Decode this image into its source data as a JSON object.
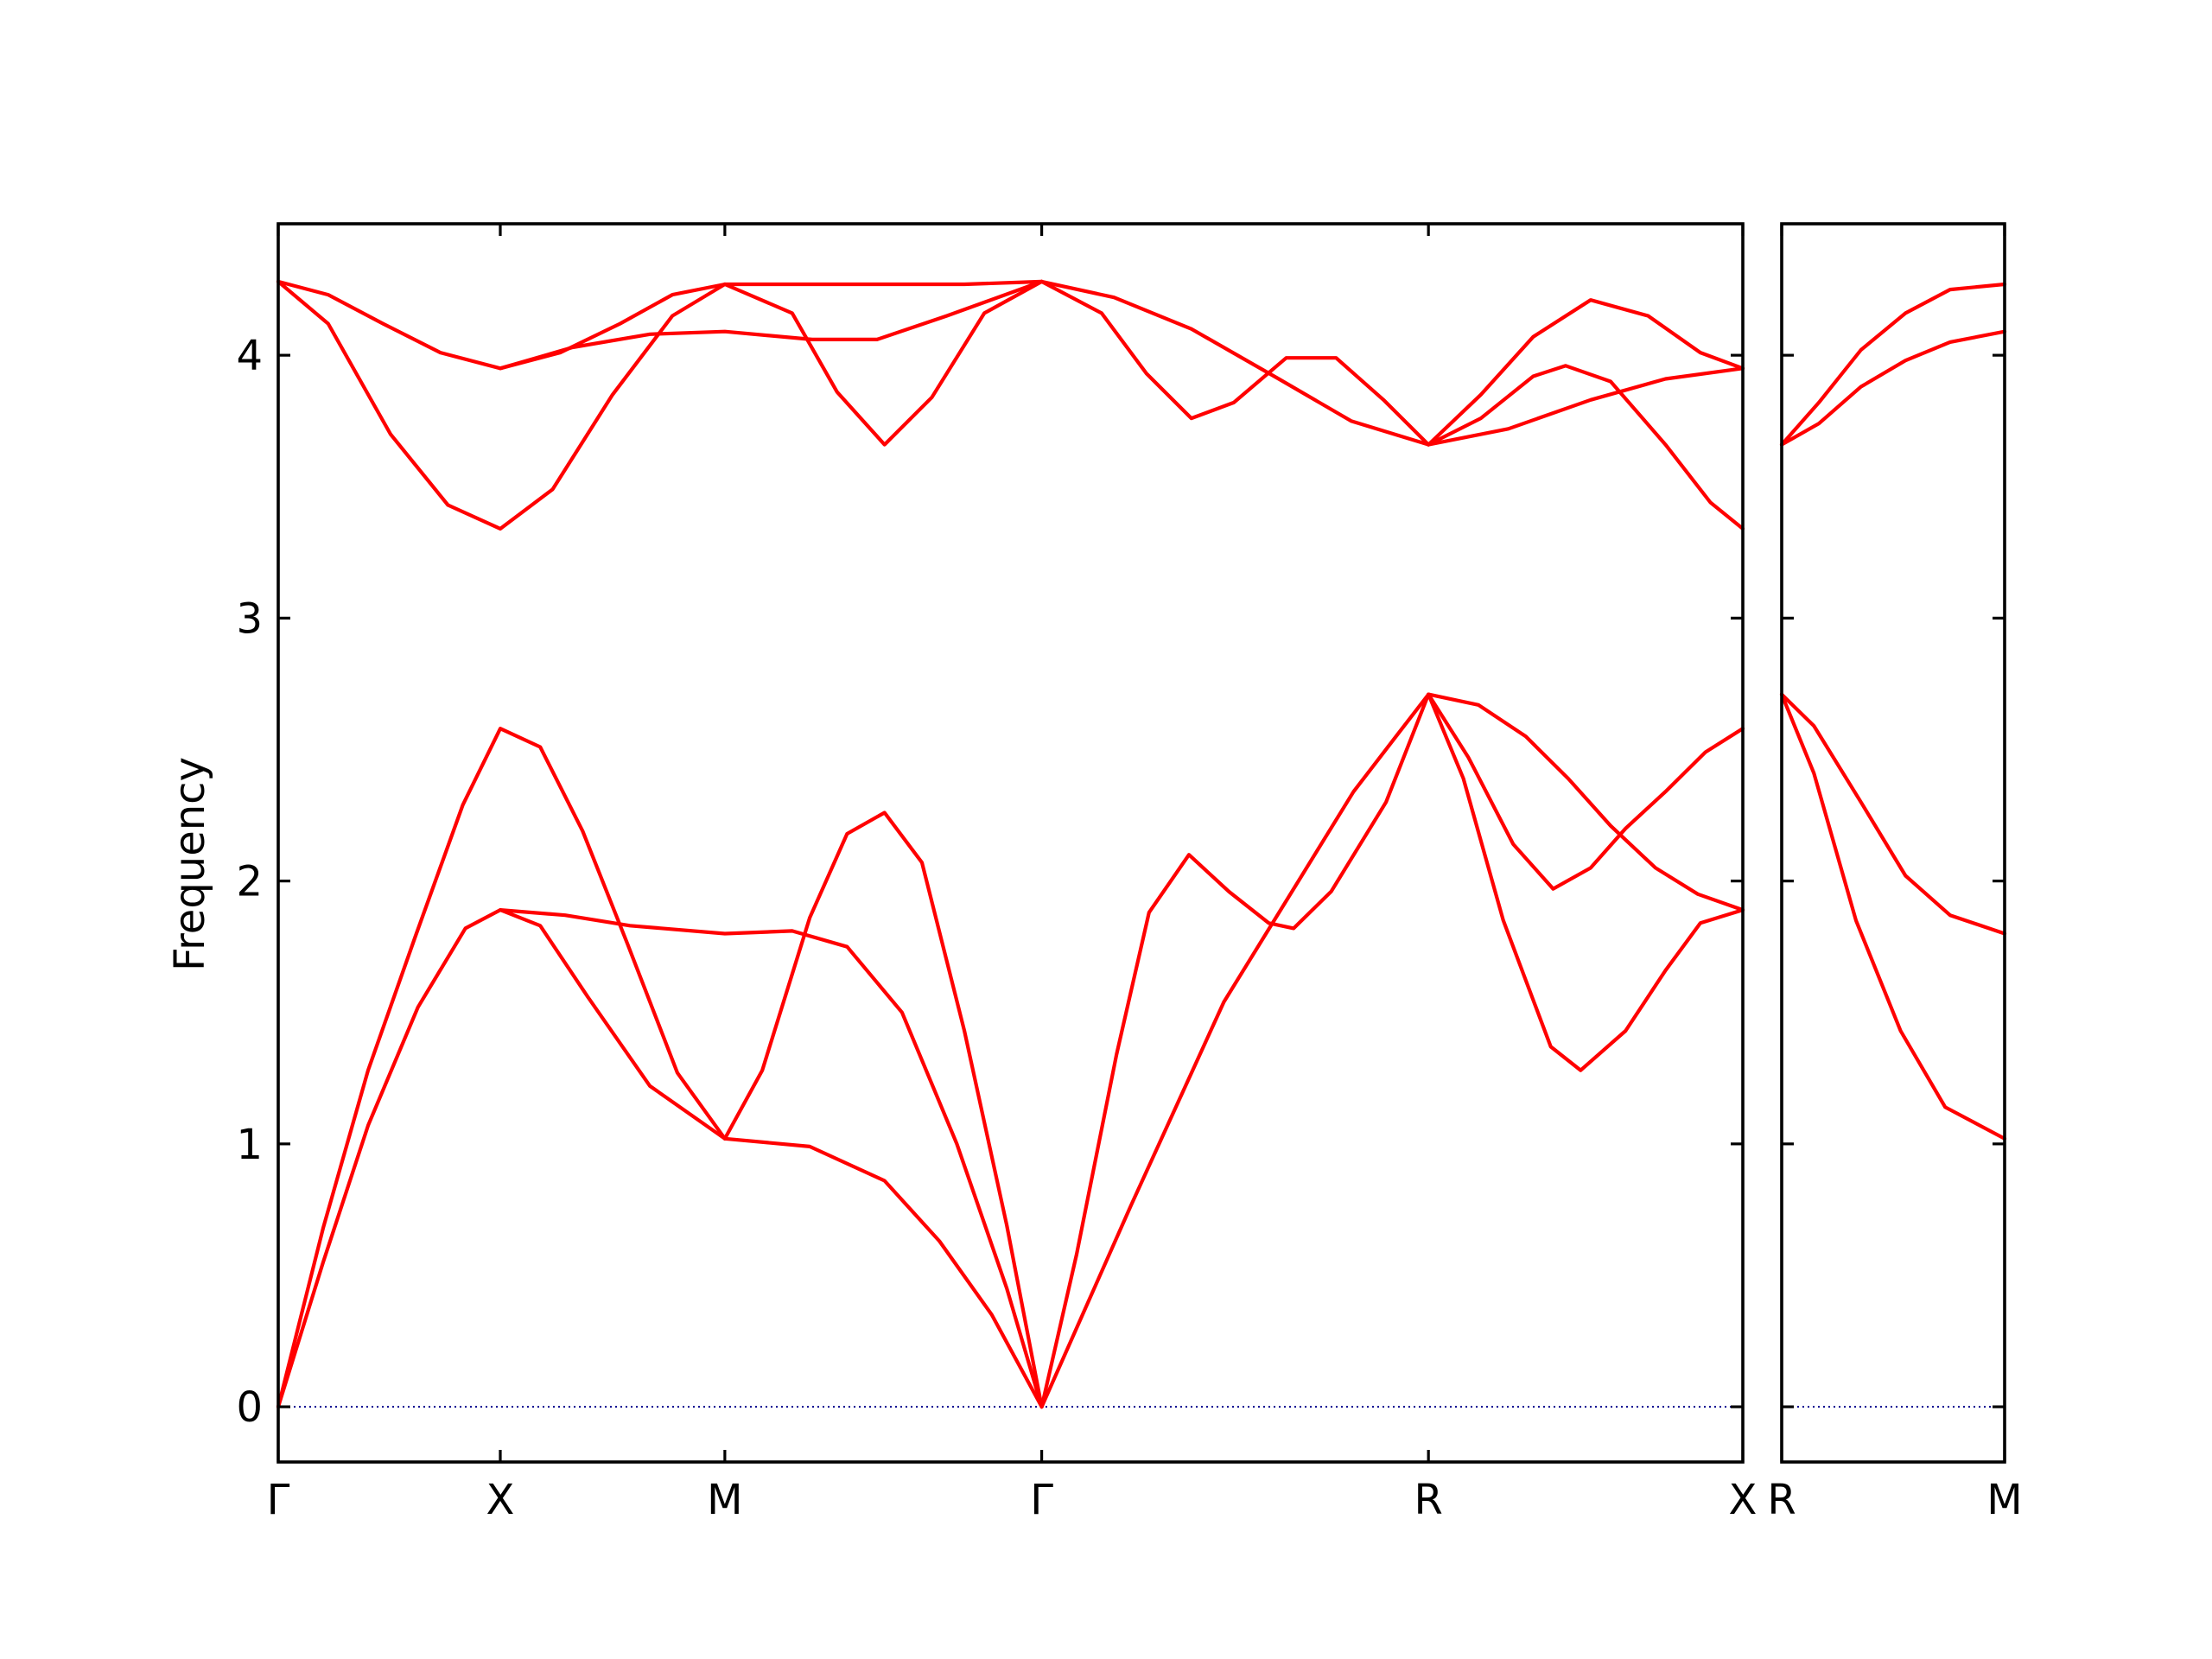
{
  "chart_data": {
    "type": "line",
    "title": "",
    "ylabel": "Frequency",
    "ylim": [
      -0.21,
      4.5
    ],
    "yticks": [
      0,
      1,
      2,
      3,
      4
    ],
    "colors": {
      "bands": "#ff0000",
      "zero_line": "#00008b",
      "axes": "#000000"
    },
    "grid": false,
    "panels": [
      {
        "name": "main-path",
        "xlim": [
          0,
          5.87
        ],
        "ticks": [
          {
            "label": "Γ",
            "x": 0
          },
          {
            "label": "X",
            "x": 0.89
          },
          {
            "label": "M",
            "x": 1.79
          },
          {
            "label": "Γ",
            "x": 3.06
          },
          {
            "label": "R",
            "x": 4.61
          },
          {
            "label": "X",
            "x": 5.87
          }
        ],
        "series": [
          {
            "points": [
              [
                0,
                4.28
              ],
              [
                0.2,
                4.23
              ],
              [
                0.42,
                4.12
              ],
              [
                0.65,
                4.01
              ],
              [
                0.89,
                3.95
              ],
              [
                1.13,
                4.01
              ],
              [
                1.37,
                4.12
              ],
              [
                1.58,
                4.23
              ],
              [
                1.79,
                4.27
              ]
            ]
          },
          {
            "points": [
              [
                0,
                4.28
              ],
              [
                0.2,
                4.12
              ],
              [
                0.45,
                3.7
              ],
              [
                0.68,
                3.43
              ],
              [
                0.89,
                3.34
              ],
              [
                1.1,
                3.49
              ],
              [
                1.34,
                3.85
              ],
              [
                1.58,
                4.15
              ],
              [
                1.79,
                4.27
              ]
            ]
          },
          {
            "points": [
              [
                0.89,
                3.95
              ],
              [
                1.18,
                4.03
              ],
              [
                1.49,
                4.08
              ],
              [
                1.79,
                4.09
              ],
              [
                2.14,
                4.06
              ],
              [
                2.4,
                4.06
              ],
              [
                2.68,
                4.15
              ],
              [
                3.06,
                4.28
              ]
            ]
          },
          {
            "points": [
              [
                1.79,
                4.27
              ],
              [
                2.14,
                4.27
              ],
              [
                2.43,
                4.27
              ],
              [
                2.75,
                4.27
              ],
              [
                3.06,
                4.28
              ]
            ]
          },
          {
            "points": [
              [
                1.79,
                4.27
              ],
              [
                2.06,
                4.16
              ],
              [
                2.24,
                3.86
              ],
              [
                2.43,
                3.66
              ],
              [
                2.62,
                3.84
              ],
              [
                2.83,
                4.16
              ],
              [
                3.06,
                4.28
              ]
            ]
          },
          {
            "points": [
              [
                3.06,
                4.28
              ],
              [
                3.35,
                4.22
              ],
              [
                3.66,
                4.1
              ],
              [
                4.01,
                3.91
              ],
              [
                4.3,
                3.75
              ],
              [
                4.61,
                3.66
              ],
              [
                4.93,
                3.72
              ],
              [
                5.26,
                3.83
              ],
              [
                5.56,
                3.91
              ],
              [
                5.87,
                3.95
              ]
            ]
          },
          {
            "points": [
              [
                3.06,
                4.28
              ],
              [
                3.3,
                4.16
              ],
              [
                3.48,
                3.93
              ],
              [
                3.66,
                3.76
              ],
              [
                3.83,
                3.82
              ],
              [
                4.04,
                3.99
              ],
              [
                4.24,
                3.99
              ],
              [
                4.43,
                3.83
              ],
              [
                4.61,
                3.66
              ],
              [
                4.82,
                3.85
              ],
              [
                5.03,
                4.07
              ],
              [
                5.26,
                4.21
              ],
              [
                5.49,
                4.15
              ],
              [
                5.7,
                4.01
              ],
              [
                5.87,
                3.95
              ]
            ]
          },
          {
            "points": [
              [
                4.61,
                3.66
              ],
              [
                4.82,
                3.76
              ],
              [
                5.03,
                3.92
              ],
              [
                5.16,
                3.96
              ],
              [
                5.34,
                3.9
              ],
              [
                5.56,
                3.66
              ],
              [
                5.74,
                3.44
              ],
              [
                5.87,
                3.34
              ]
            ]
          },
          {
            "points": [
              [
                0,
                0
              ],
              [
                0.18,
                0.68
              ],
              [
                0.36,
                1.28
              ],
              [
                0.55,
                1.79
              ],
              [
                0.74,
                2.29
              ],
              [
                0.89,
                2.58
              ],
              [
                1.05,
                2.51
              ],
              [
                1.22,
                2.19
              ],
              [
                1.4,
                1.76
              ],
              [
                1.6,
                1.27
              ],
              [
                1.79,
                1.02
              ]
            ]
          },
          {
            "points": [
              [
                0,
                0
              ],
              [
                0.18,
                0.55
              ],
              [
                0.36,
                1.07
              ],
              [
                0.56,
                1.52
              ],
              [
                0.75,
                1.82
              ],
              [
                0.89,
                1.89
              ],
              [
                1.05,
                1.83
              ],
              [
                1.24,
                1.56
              ],
              [
                1.49,
                1.22
              ],
              [
                1.79,
                1.02
              ]
            ]
          },
          {
            "points": [
              [
                0.89,
                1.89
              ],
              [
                1.15,
                1.87
              ],
              [
                1.41,
                1.83
              ],
              [
                1.79,
                1.8
              ],
              [
                2.06,
                1.81
              ],
              [
                2.28,
                1.75
              ],
              [
                2.5,
                1.5
              ],
              [
                2.72,
                1.0
              ],
              [
                2.92,
                0.45
              ],
              [
                3.06,
                0
              ]
            ]
          },
          {
            "points": [
              [
                1.79,
                1.02
              ],
              [
                1.94,
                1.28
              ],
              [
                2.13,
                1.86
              ],
              [
                2.28,
                2.18
              ],
              [
                2.43,
                2.26
              ],
              [
                2.58,
                2.07
              ],
              [
                2.75,
                1.43
              ],
              [
                2.92,
                0.69
              ],
              [
                3.06,
                0
              ]
            ]
          },
          {
            "points": [
              [
                1.79,
                1.02
              ],
              [
                2.13,
                0.99
              ],
              [
                2.43,
                0.86
              ],
              [
                2.65,
                0.63
              ],
              [
                2.86,
                0.35
              ],
              [
                3.06,
                0
              ]
            ]
          },
          {
            "points": [
              [
                3.06,
                0
              ],
              [
                3.2,
                0.58
              ],
              [
                3.36,
                1.34
              ],
              [
                3.49,
                1.88
              ],
              [
                3.65,
                2.1
              ],
              [
                3.81,
                1.96
              ],
              [
                3.97,
                1.84
              ],
              [
                4.07,
                1.82
              ],
              [
                4.22,
                1.96
              ],
              [
                4.44,
                2.3
              ],
              [
                4.61,
                2.71
              ]
            ]
          },
          {
            "points": [
              [
                3.06,
                0
              ],
              [
                3.42,
                0.77
              ],
              [
                3.79,
                1.54
              ],
              [
                4.05,
                1.94
              ],
              [
                4.31,
                2.34
              ],
              [
                4.48,
                2.55
              ],
              [
                4.61,
                2.71
              ]
            ]
          },
          {
            "points": [
              [
                4.61,
                2.71
              ],
              [
                4.81,
                2.67
              ],
              [
                5.0,
                2.55
              ],
              [
                5.17,
                2.39
              ],
              [
                5.34,
                2.21
              ],
              [
                5.52,
                2.05
              ],
              [
                5.69,
                1.95
              ],
              [
                5.87,
                1.89
              ]
            ]
          },
          {
            "points": [
              [
                4.61,
                2.71
              ],
              [
                4.77,
                2.47
              ],
              [
                4.95,
                2.14
              ],
              [
                5.11,
                1.97
              ],
              [
                5.26,
                2.05
              ],
              [
                5.4,
                2.2
              ],
              [
                5.56,
                2.34
              ],
              [
                5.72,
                2.49
              ],
              [
                5.87,
                2.58
              ]
            ]
          },
          {
            "points": [
              [
                4.61,
                2.71
              ],
              [
                4.75,
                2.39
              ],
              [
                4.91,
                1.85
              ],
              [
                5.1,
                1.37
              ],
              [
                5.22,
                1.28
              ],
              [
                5.4,
                1.43
              ],
              [
                5.56,
                1.66
              ],
              [
                5.7,
                1.84
              ],
              [
                5.87,
                1.89
              ]
            ]
          }
        ]
      },
      {
        "name": "r-m-path",
        "xlim": [
          0,
          0.9
        ],
        "ticks": [
          {
            "label": "R",
            "x": 0
          },
          {
            "label": "M",
            "x": 0.9
          }
        ],
        "series": [
          {
            "points": [
              [
                0,
                3.66
              ],
              [
                0.15,
                3.82
              ],
              [
                0.32,
                4.02
              ],
              [
                0.5,
                4.16
              ],
              [
                0.68,
                4.25
              ],
              [
                0.9,
                4.27
              ]
            ]
          },
          {
            "points": [
              [
                0,
                3.66
              ],
              [
                0.15,
                3.74
              ],
              [
                0.32,
                3.88
              ],
              [
                0.5,
                3.98
              ],
              [
                0.68,
                4.05
              ],
              [
                0.9,
                4.09
              ]
            ]
          },
          {
            "points": [
              [
                0,
                2.71
              ],
              [
                0.13,
                2.59
              ],
              [
                0.32,
                2.3
              ],
              [
                0.5,
                2.02
              ],
              [
                0.68,
                1.87
              ],
              [
                0.9,
                1.8
              ]
            ]
          },
          {
            "points": [
              [
                0,
                2.71
              ],
              [
                0.13,
                2.41
              ],
              [
                0.3,
                1.85
              ],
              [
                0.48,
                1.43
              ],
              [
                0.66,
                1.14
              ],
              [
                0.9,
                1.02
              ]
            ]
          }
        ]
      }
    ]
  }
}
